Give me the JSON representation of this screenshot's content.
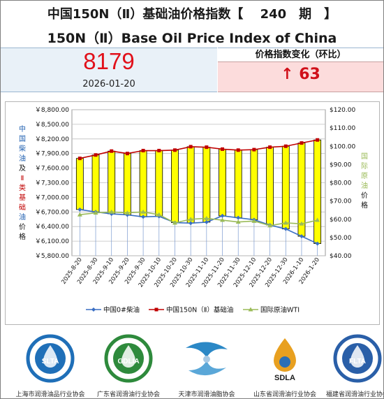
{
  "header": {
    "title_cn": "中国150N（Ⅱ）基础油价格指数【　 240　期　】",
    "title_en": "150N（Ⅱ）Base Oil Price Index of China"
  },
  "index": {
    "value": "8179",
    "date": "2026-01-20",
    "change_label": "价格指数变化（环比）",
    "change_value": "↑ 63"
  },
  "chart_data": {
    "type": "bar+line",
    "categories": [
      "2025-8-20",
      "2025-8-30",
      "2025-9-10",
      "2025-9-20",
      "2025-9-30",
      "2025-10-10",
      "2025-10-20",
      "2025-10-30",
      "2025-11-10",
      "2025-11-20",
      "2025-11-30",
      "2025-12-10",
      "2025-12-20",
      "2025-12-30",
      "2026-1-10",
      "2026-1-20"
    ],
    "left_axis": {
      "label": "中国柴油及Ⅱ类基础油价格",
      "ylim": [
        5800,
        8800
      ],
      "ticks": [
        "￥8,800.00",
        "￥8,500.00",
        "￥8,200.00",
        "￥7,900.00",
        "￥7,600.00",
        "￥7,300.00",
        "￥7,000.00",
        "￥6,700.00",
        "￥6,400.00",
        "￥6,100.00",
        "￥5,800.00"
      ]
    },
    "right_axis": {
      "label": "国际原油价格",
      "ylim": [
        40,
        120
      ],
      "ticks": [
        "$120.00",
        "$110.00",
        "$100.00",
        "$90.00",
        "$80.00",
        "$70.00",
        "$60.00",
        "$50.00",
        "$40.00"
      ]
    },
    "series": [
      {
        "name": "中国0#柴油",
        "axis": "left",
        "color": "#3a6fc4",
        "values": [
          6750,
          6700,
          6660,
          6640,
          6600,
          6610,
          6480,
          6470,
          6490,
          6620,
          6580,
          6540,
          6430,
          6350,
          6200,
          6050
        ]
      },
      {
        "name": "中国150N（Ⅱ）基础油",
        "axis": "left",
        "color": "#c00000",
        "values": [
          7800,
          7870,
          7950,
          7900,
          7960,
          7960,
          7970,
          8040,
          8030,
          7990,
          7970,
          7980,
          8030,
          8050,
          8116,
          8179
        ]
      },
      {
        "name": "国际原油WTI",
        "axis": "right",
        "color": "#9bbb59",
        "values": [
          62.5,
          63.5,
          64.0,
          63.5,
          64.0,
          62.5,
          58.0,
          60.0,
          60.5,
          59.5,
          58.5,
          59.0,
          56.5,
          58.0,
          57.5,
          59.5
        ]
      }
    ],
    "grid": true,
    "legend_position": "bottom"
  },
  "associations": [
    {
      "logo": "SLTA",
      "name": "上海市润滑油品行业协会",
      "color": "#1f6fb8"
    },
    {
      "logo": "GDLIA",
      "name": "广东省润滑油行业协会",
      "color": "#2e8a3c"
    },
    {
      "logo": "",
      "name": "天津市润滑油脂协会",
      "color": "#2b88c6"
    },
    {
      "logo": "SDLA",
      "name": "山东省润滑油行业协会",
      "color": "#e8a020"
    },
    {
      "logo": "FLTA",
      "name": "福建省润滑油行业协会",
      "color": "#2a5fa8"
    }
  ]
}
